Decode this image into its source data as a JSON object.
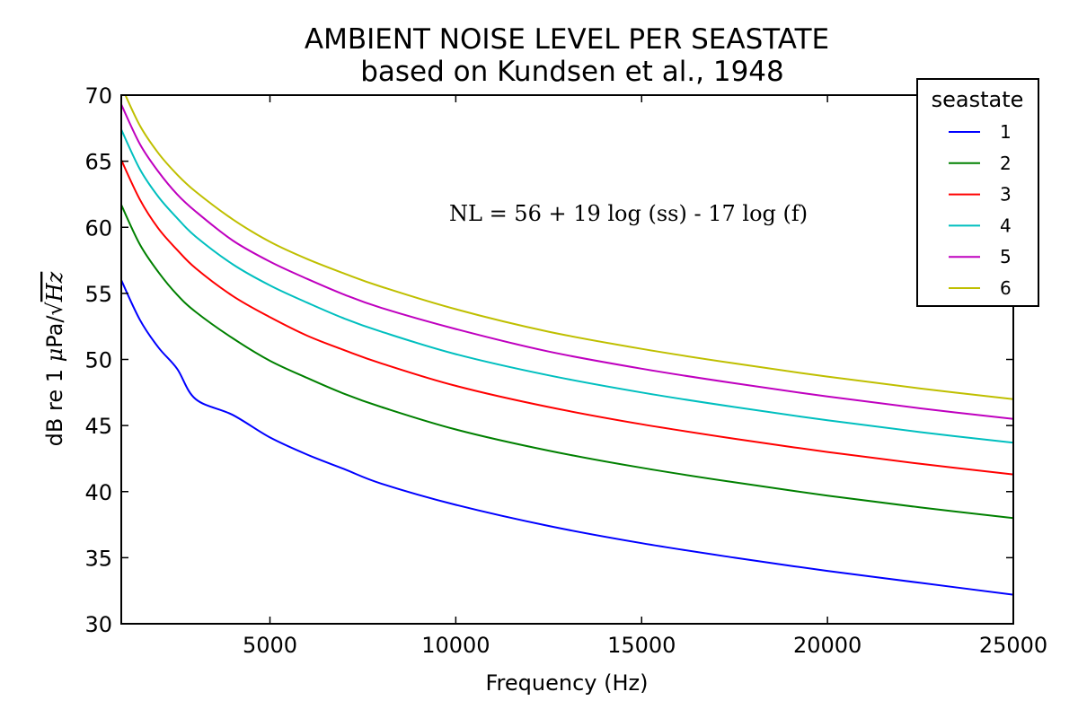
{
  "chart_data": {
    "type": "line",
    "title": "AMBIENT NOISE LEVEL PER SEASTATE",
    "subtitle": "based on Kundsen et al., 1948",
    "xlabel": "Frequency (Hz)",
    "ylabel_prefix": "dB re 1 ",
    "ylabel_mu": "μ",
    "ylabel_unit": "Pa/",
    "ylabel_sqrt": "√",
    "ylabel_hz": "Hz",
    "annotation": "NL = 56 + 19 log (ss) - 17 log (f)",
    "xlim": [
      1000,
      25000
    ],
    "ylim": [
      30,
      70
    ],
    "x_ticks": [
      5000,
      10000,
      15000,
      20000,
      25000
    ],
    "x_tick_labels": [
      "5000",
      "10000",
      "15000",
      "20000",
      "25000"
    ],
    "y_ticks": [
      30,
      35,
      40,
      45,
      50,
      55,
      60,
      65,
      70
    ],
    "y_tick_labels": [
      "30",
      "35",
      "40",
      "45",
      "50",
      "55",
      "60",
      "65",
      "70"
    ],
    "legend": {
      "title": "seastate",
      "placement": "top-right"
    },
    "grid": false,
    "x": [
      1000,
      1500,
      2000,
      2500,
      3000,
      4000,
      5000,
      6000,
      7000,
      8000,
      10000,
      12500,
      15000,
      17500,
      20000,
      22500,
      25000
    ],
    "series": [
      {
        "name": "1",
        "color": "#0000ff",
        "values": [
          56.0,
          53.0,
          50.9,
          49.3,
          47.0,
          45.8,
          44.1,
          42.8,
          41.7,
          40.6,
          39.0,
          37.4,
          36.1,
          35.0,
          34.0,
          33.1,
          32.2
        ]
      },
      {
        "name": "2",
        "color": "#008000",
        "values": [
          61.7,
          58.7,
          56.6,
          54.9,
          53.6,
          51.6,
          49.9,
          48.6,
          47.4,
          46.4,
          44.7,
          43.1,
          41.8,
          40.7,
          39.7,
          38.8,
          38.0
        ]
      },
      {
        "name": "3",
        "color": "#ff0000",
        "values": [
          65.1,
          62.1,
          59.9,
          58.3,
          56.9,
          54.8,
          53.2,
          51.8,
          50.7,
          49.7,
          48.0,
          46.4,
          45.1,
          44.0,
          43.0,
          42.1,
          41.3
        ]
      },
      {
        "name": "4",
        "color": "#00bfbf",
        "values": [
          67.4,
          64.4,
          62.3,
          60.7,
          59.3,
          57.2,
          55.6,
          54.3,
          53.1,
          52.1,
          50.4,
          48.8,
          47.5,
          46.4,
          45.4,
          44.5,
          43.7
        ]
      },
      {
        "name": "5",
        "color": "#bf00bf",
        "values": [
          69.3,
          66.3,
          64.2,
          62.5,
          61.2,
          59.0,
          57.4,
          56.1,
          54.9,
          53.9,
          52.3,
          50.6,
          49.3,
          48.2,
          47.2,
          46.3,
          45.5
        ]
      },
      {
        "name": "6",
        "color": "#bfbf00",
        "values": [
          70.7,
          67.7,
          65.6,
          64.0,
          62.7,
          60.6,
          58.9,
          57.6,
          56.5,
          55.5,
          53.8,
          52.1,
          50.8,
          49.7,
          48.7,
          47.8,
          47.0
        ]
      }
    ]
  }
}
